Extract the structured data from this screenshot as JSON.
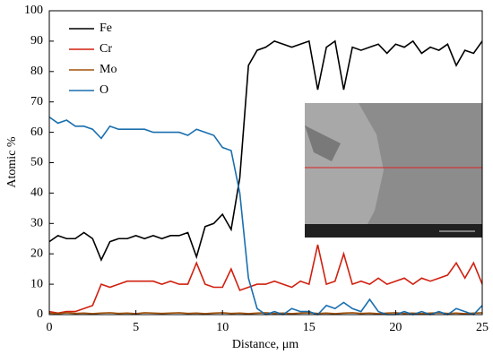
{
  "chart_data": {
    "type": "line",
    "xlabel": "Distance, μm",
    "ylabel": "Atomic %",
    "x": [
      0,
      0.5,
      1,
      1.5,
      2,
      2.5,
      3,
      3.5,
      4,
      4.5,
      5,
      5.5,
      6,
      6.5,
      7,
      7.5,
      8,
      8.5,
      9,
      9.5,
      10,
      10.5,
      11,
      11.5,
      12,
      12.5,
      13,
      13.5,
      14,
      14.5,
      15,
      15.5,
      16,
      16.5,
      17,
      17.5,
      18,
      18.5,
      19,
      19.5,
      20,
      20.5,
      21,
      21.5,
      22,
      22.5,
      23,
      23.5,
      24,
      24.5,
      25
    ],
    "series": [
      {
        "name": "Fe",
        "color": "#000000",
        "values": [
          24,
          26,
          25,
          25,
          27,
          25,
          18,
          24,
          25,
          25,
          26,
          25,
          26,
          25,
          26,
          26,
          27,
          19,
          29,
          30,
          33,
          28,
          45,
          82,
          87,
          88,
          90,
          89,
          88,
          89,
          90,
          74,
          88,
          90,
          74,
          88,
          87,
          88,
          89,
          86,
          89,
          88,
          90,
          86,
          88,
          87,
          89,
          82,
          87,
          86,
          90
        ]
      },
      {
        "name": "Cr",
        "color": "#d0200f",
        "values": [
          1,
          0.5,
          1,
          1,
          2,
          3,
          10,
          9,
          10,
          11,
          11,
          11,
          11,
          10,
          11,
          10,
          10,
          17,
          10,
          9,
          9,
          15,
          8,
          9,
          10,
          10,
          11,
          10,
          9,
          11,
          10,
          23,
          10,
          11,
          20,
          10,
          11,
          10,
          12,
          10,
          11,
          12,
          10,
          12,
          11,
          12,
          13,
          17,
          12,
          17,
          10
        ]
      },
      {
        "name": "Mo",
        "color": "#a0520a",
        "values": [
          0.5,
          0.3,
          0.6,
          0.4,
          0.5,
          0.3,
          0.5,
          0.6,
          0.4,
          0.5,
          0.3,
          0.6,
          0.5,
          0.4,
          0.5,
          0.6,
          0.4,
          0.5,
          0.3,
          0.5,
          0.6,
          0.4,
          0.5,
          0.3,
          0.5,
          0.6,
          0.4,
          0.5,
          0.3,
          0.5,
          0.6,
          0.4,
          0.5,
          0.3,
          0.5,
          0.6,
          0.4,
          0.5,
          0.3,
          0.5,
          0.6,
          0.4,
          0.5,
          0.3,
          0.5,
          0.6,
          0.4,
          0.5,
          0.3,
          0.5,
          0.6
        ]
      },
      {
        "name": "O",
        "color": "#1a6fae",
        "values": [
          65,
          63,
          64,
          62,
          62,
          61,
          58,
          62,
          61,
          61,
          61,
          61,
          60,
          60,
          60,
          60,
          59,
          61,
          60,
          59,
          55,
          54,
          40,
          12,
          2,
          0,
          1,
          0,
          2,
          1,
          1,
          0,
          3,
          2,
          4,
          2,
          1,
          5,
          1,
          0,
          0,
          1,
          0,
          1,
          0,
          1,
          0,
          2,
          1,
          0,
          3
        ]
      }
    ],
    "xlim": [
      0,
      25
    ],
    "xticks": [
      0,
      5,
      10,
      15,
      20,
      25
    ],
    "ylim": [
      0,
      100
    ],
    "yticks": [
      0,
      10,
      20,
      30,
      40,
      50,
      60,
      70,
      80,
      90,
      100
    ],
    "grid": false,
    "legend": "upper left"
  }
}
